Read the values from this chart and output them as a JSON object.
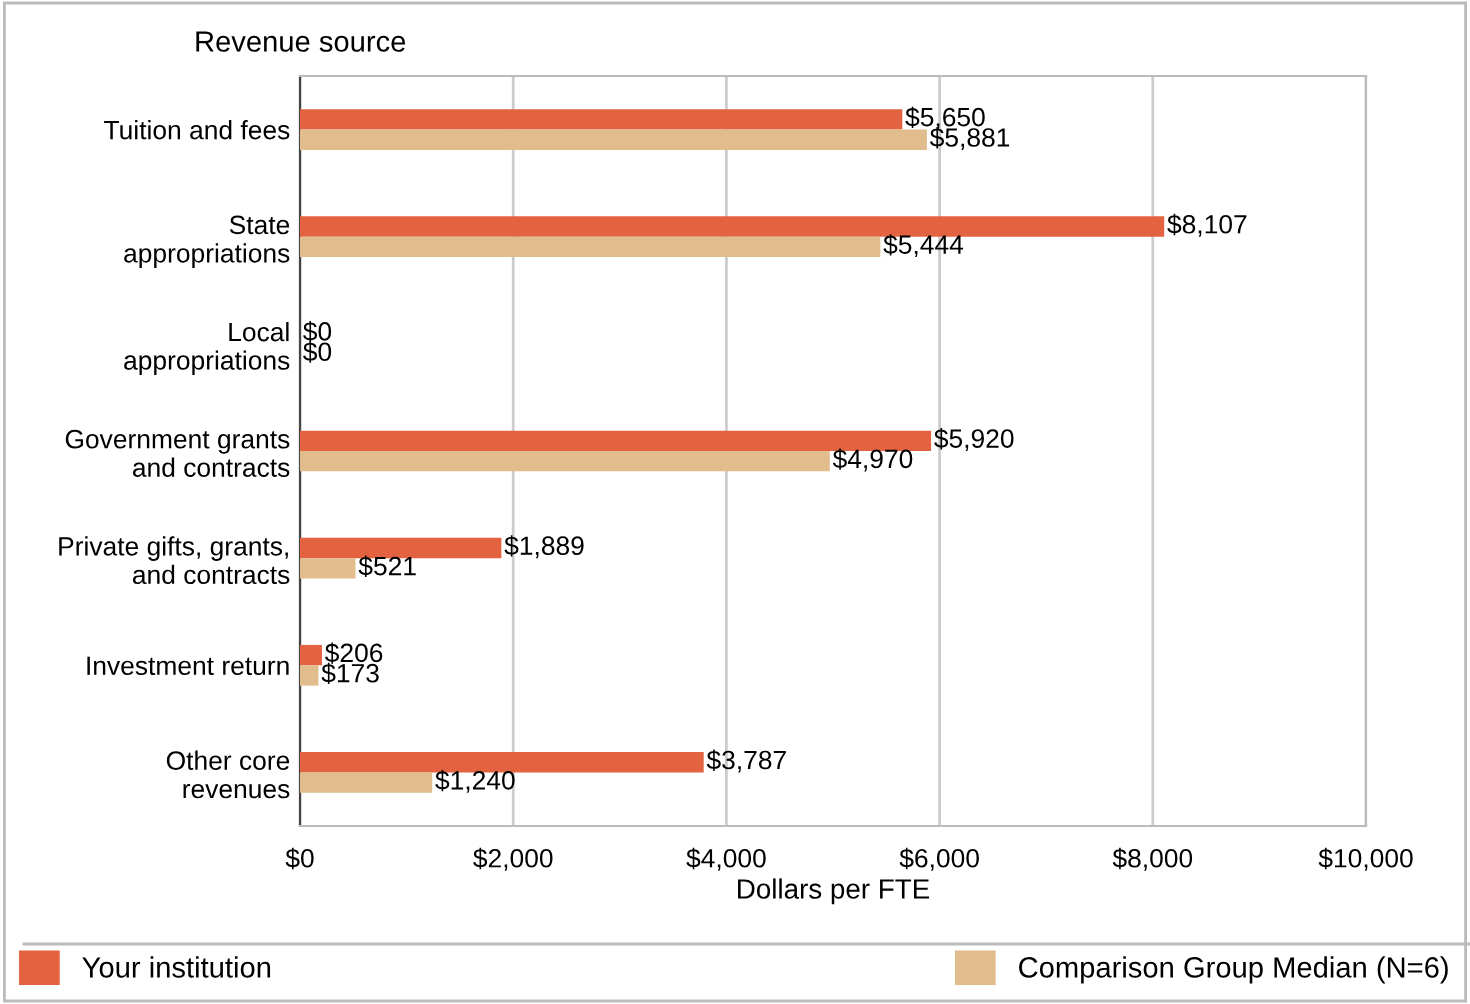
{
  "chart_data": {
    "type": "bar",
    "orientation": "horizontal",
    "ylabel": "Revenue source",
    "xlabel": "Dollars per FTE",
    "categories": [
      "Tuition and fees",
      "State\nappropriations",
      "Local\nappropriations",
      "Government grants\nand contracts",
      "Private gifts, grants,\nand contracts",
      "Investment return",
      "Other core\nrevenues"
    ],
    "series": [
      {
        "name": "Your institution",
        "color": "#e3623f",
        "values": [
          5650,
          8107,
          0,
          5920,
          1889,
          206,
          3787
        ],
        "value_labels": [
          "$5,650",
          "$8,107",
          "$0",
          "$5,920",
          "$1,889",
          "$206",
          "$3,787"
        ]
      },
      {
        "name": "Comparison Group Median (N=6)",
        "color": "#e1bc8c",
        "values": [
          5881,
          5444,
          0,
          4970,
          521,
          173,
          1240
        ],
        "value_labels": [
          "$5,881",
          "$5,444",
          "$0",
          "$4,970",
          "$521",
          "$173",
          "$1,240"
        ]
      }
    ],
    "xlim": [
      0,
      10000
    ],
    "xticks": [
      {
        "value": 0,
        "label": "$0"
      },
      {
        "value": 2000,
        "label": "$2,000"
      },
      {
        "value": 4000,
        "label": "$4,000"
      },
      {
        "value": 6000,
        "label": "$6,000"
      },
      {
        "value": 8000,
        "label": "$8,000"
      },
      {
        "value": 10000,
        "label": "$10,000"
      }
    ],
    "grid": "x",
    "legend": "bottom"
  }
}
